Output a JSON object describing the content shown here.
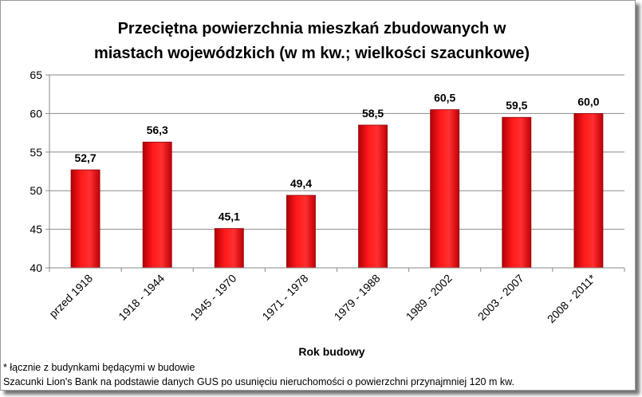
{
  "chart_data": {
    "type": "bar",
    "title_lines": [
      "Przeciętna powierzchnia mieszkań zbudowanych w",
      "miastach wojewódzkich (w m kw.; wielkości szacunkowe)"
    ],
    "categories": [
      "przed 1918",
      "1918 - 1944",
      "1945 - 1970",
      "1971 - 1978",
      "1979 - 1988",
      "1989 - 2002",
      "2003 - 2007",
      "2008 - 2011*"
    ],
    "values": [
      52.7,
      56.3,
      45.1,
      49.4,
      58.5,
      60.5,
      59.5,
      60.0
    ],
    "value_labels": [
      "52,7",
      "56,3",
      "45,1",
      "49,4",
      "58,5",
      "60,5",
      "59,5",
      "60,0"
    ],
    "xlabel": "Rok budowy",
    "ylabel": "",
    "ylim": [
      40,
      65
    ],
    "yticks": [
      "40",
      "45",
      "50",
      "55",
      "60",
      "65"
    ],
    "grid": true,
    "legend": "none",
    "bar_color": "#e8000b"
  },
  "notes": {
    "footnote": "* łącznie z budynkami będącymi w budowie",
    "source": "Szacunki Lion's Bank na podstawie danych GUS po usunięciu nieruchomości o powierzchni przynajmniej 120 m kw."
  }
}
